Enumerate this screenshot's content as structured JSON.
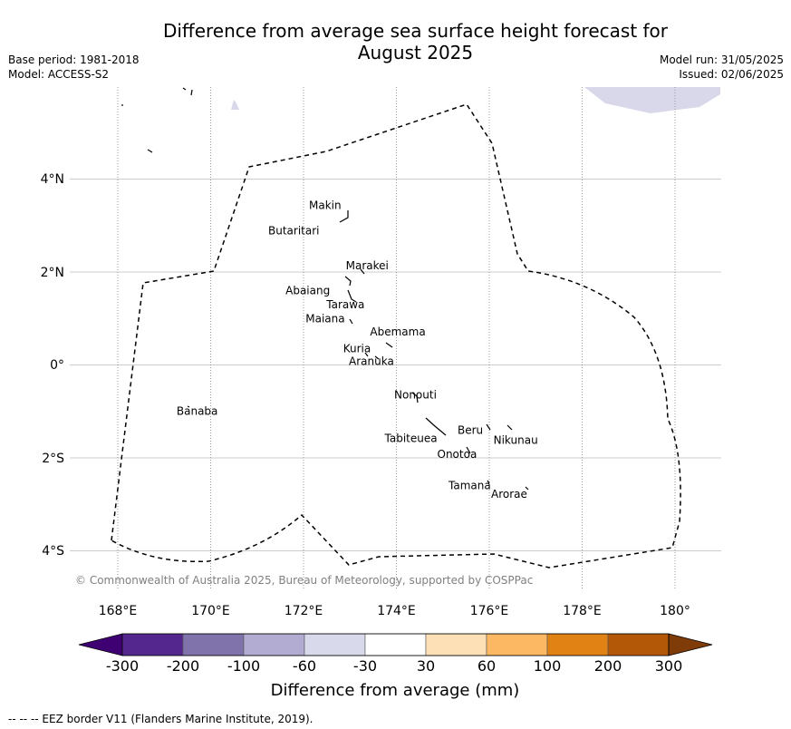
{
  "title": {
    "line1": "Difference from average sea surface height forecast for",
    "line2": "August 2025"
  },
  "meta_left": {
    "base_period": "Base period: 1981-2018",
    "model": "Model: ACCESS-S2"
  },
  "meta_right": {
    "model_run": "Model run: 31/05/2025",
    "issued": "Issued: 02/06/2025"
  },
  "map": {
    "lon_labels": [
      "168°E",
      "170°E",
      "172°E",
      "174°E",
      "176°E",
      "178°E",
      "180°"
    ],
    "lat_labels": [
      "4°N",
      "2°N",
      "0°",
      "2°S",
      "4°S"
    ],
    "places": [
      {
        "name": "Makin",
        "lon": 172.8,
        "lat": 3.3
      },
      {
        "name": "Butaritari",
        "lon": 172.8,
        "lat": 3.1
      },
      {
        "name": "Marakei",
        "lon": 173.3,
        "lat": 2.0
      },
      {
        "name": "Abaiang",
        "lon": 172.9,
        "lat": 1.8
      },
      {
        "name": "Tarawa",
        "lon": 173.0,
        "lat": 1.4
      },
      {
        "name": "Maiana",
        "lon": 173.0,
        "lat": 1.0
      },
      {
        "name": "Abemama",
        "lon": 173.9,
        "lat": 0.4
      },
      {
        "name": "Kuria",
        "lon": 173.4,
        "lat": 0.2
      },
      {
        "name": "Aranuka",
        "lon": 173.6,
        "lat": 0.2
      },
      {
        "name": "Nonouti",
        "lon": 174.4,
        "lat": -0.6
      },
      {
        "name": "Banaba",
        "lon": 169.5,
        "lat": -0.9
      },
      {
        "name": "Beru",
        "lon": 176.0,
        "lat": -1.4
      },
      {
        "name": "Nikunau",
        "lon": 176.5,
        "lat": -1.4
      },
      {
        "name": "Tabiteuea",
        "lon": 174.8,
        "lat": -1.4
      },
      {
        "name": "Onotoa",
        "lon": 175.6,
        "lat": -1.8
      },
      {
        "name": "Tamana",
        "lon": 176.0,
        "lat": -2.5
      },
      {
        "name": "Arorae",
        "lon": 176.8,
        "lat": -2.6
      }
    ],
    "copyright": "© Commonwealth of Australia 2025, Bureau of Meteorology, supported by COSPPac",
    "fill_color_northeast": "#d8d8ea"
  },
  "colorbar": {
    "title": "Difference from average (mm)",
    "tick_labels": [
      "-300",
      "-200",
      "-100",
      "-60",
      "-30",
      "30",
      "60",
      "100",
      "200",
      "300"
    ],
    "colors": [
      "#3f0073",
      "#54278f",
      "#8073ac",
      "#b2abd2",
      "#d8daeb",
      "#ffffff",
      "#fee0b6",
      "#fdb863",
      "#e08214",
      "#b35806",
      "#7f3b08"
    ]
  },
  "footnote": "--  --  -- EEZ border V11 (Flanders Marine Institute, 2019)."
}
